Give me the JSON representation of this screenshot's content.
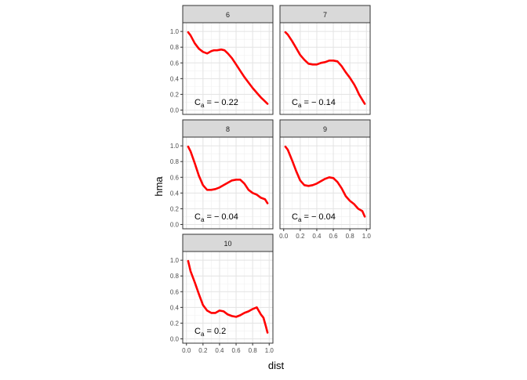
{
  "chart_data": {
    "type": "line",
    "xlabel": "dist",
    "ylabel": "hma",
    "xlim": [
      0,
      1
    ],
    "ylim": [
      0,
      1.1
    ],
    "x_ticks": [
      "0.0",
      "0.2",
      "0.4",
      "0.6",
      "0.8",
      "1.0"
    ],
    "y_ticks": [
      "0.0",
      "0.2",
      "0.4",
      "0.6",
      "0.8",
      "1.0"
    ],
    "grid": true,
    "line_color": "#ff0000",
    "strip_fill": "#d9d9d9",
    "facets": [
      {
        "strip": "6",
        "annotation": {
          "base": "C",
          "sub": "a",
          "rest": " = − 0.22"
        },
        "x": [
          0.02,
          0.05,
          0.1,
          0.15,
          0.2,
          0.25,
          0.3,
          0.33,
          0.37,
          0.42,
          0.46,
          0.5,
          0.55,
          0.6,
          0.65,
          0.7,
          0.75,
          0.8,
          0.85,
          0.9,
          0.95,
          0.98
        ],
        "y": [
          0.99,
          0.95,
          0.85,
          0.78,
          0.74,
          0.72,
          0.75,
          0.76,
          0.76,
          0.77,
          0.76,
          0.72,
          0.66,
          0.58,
          0.5,
          0.42,
          0.35,
          0.28,
          0.22,
          0.16,
          0.11,
          0.08
        ]
      },
      {
        "strip": "7",
        "annotation": {
          "base": "C",
          "sub": "a",
          "rest": " = − 0.14"
        },
        "x": [
          0.02,
          0.05,
          0.1,
          0.15,
          0.2,
          0.25,
          0.3,
          0.35,
          0.4,
          0.45,
          0.5,
          0.55,
          0.6,
          0.65,
          0.7,
          0.75,
          0.8,
          0.85,
          0.88,
          0.91,
          0.95,
          0.98
        ],
        "y": [
          0.99,
          0.96,
          0.88,
          0.79,
          0.7,
          0.64,
          0.59,
          0.58,
          0.58,
          0.6,
          0.61,
          0.63,
          0.63,
          0.62,
          0.56,
          0.48,
          0.41,
          0.33,
          0.27,
          0.2,
          0.13,
          0.08
        ]
      },
      {
        "strip": "8",
        "annotation": {
          "base": "C",
          "sub": "a",
          "rest": " = − 0.04"
        },
        "x": [
          0.02,
          0.05,
          0.1,
          0.15,
          0.2,
          0.25,
          0.3,
          0.35,
          0.4,
          0.45,
          0.5,
          0.55,
          0.6,
          0.65,
          0.7,
          0.75,
          0.8,
          0.85,
          0.9,
          0.95,
          0.98
        ],
        "y": [
          0.99,
          0.93,
          0.78,
          0.62,
          0.5,
          0.44,
          0.44,
          0.45,
          0.47,
          0.5,
          0.53,
          0.56,
          0.57,
          0.57,
          0.52,
          0.44,
          0.4,
          0.38,
          0.34,
          0.32,
          0.27
        ]
      },
      {
        "strip": "9",
        "annotation": {
          "base": "C",
          "sub": "a",
          "rest": " = − 0.04"
        },
        "x": [
          0.02,
          0.05,
          0.1,
          0.15,
          0.2,
          0.25,
          0.3,
          0.35,
          0.4,
          0.45,
          0.5,
          0.55,
          0.6,
          0.65,
          0.7,
          0.75,
          0.8,
          0.85,
          0.9,
          0.95,
          0.98
        ],
        "y": [
          0.99,
          0.95,
          0.82,
          0.68,
          0.56,
          0.5,
          0.49,
          0.5,
          0.52,
          0.55,
          0.58,
          0.6,
          0.59,
          0.54,
          0.46,
          0.36,
          0.3,
          0.26,
          0.2,
          0.17,
          0.1
        ]
      },
      {
        "strip": "10",
        "annotation": {
          "base": "C",
          "sub": "a",
          "rest": " = 0.2"
        },
        "x": [
          0.02,
          0.05,
          0.1,
          0.15,
          0.2,
          0.25,
          0.3,
          0.35,
          0.4,
          0.45,
          0.5,
          0.55,
          0.6,
          0.65,
          0.7,
          0.75,
          0.8,
          0.85,
          0.9,
          0.93,
          0.96,
          0.98
        ],
        "y": [
          0.99,
          0.86,
          0.72,
          0.57,
          0.43,
          0.36,
          0.33,
          0.33,
          0.36,
          0.35,
          0.31,
          0.29,
          0.28,
          0.3,
          0.33,
          0.35,
          0.38,
          0.4,
          0.31,
          0.27,
          0.16,
          0.08
        ]
      }
    ]
  }
}
